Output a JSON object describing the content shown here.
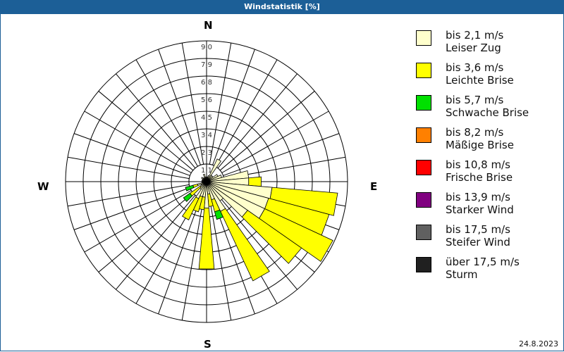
{
  "window": {
    "title": "Windstatistik [%]"
  },
  "compass": {
    "n": "N",
    "e": "E",
    "s": "S",
    "w": "W"
  },
  "footer": {
    "date": "24.8.2023"
  },
  "legend": [
    {
      "range": "bis 2,1 m/s",
      "label": "Leiser Zug",
      "color": "#ffffcc"
    },
    {
      "range": "bis 3,6 m/s",
      "label": "Leichte Brise",
      "color": "#ffff00"
    },
    {
      "range": "bis 5,7 m/s",
      "label": "Schwache Brise",
      "color": "#00e000"
    },
    {
      "range": "bis 8,2 m/s",
      "label": "Mäßige Brise",
      "color": "#ff8000"
    },
    {
      "range": "bis 10,8 m/s",
      "label": "Frische Brise",
      "color": "#ff0000"
    },
    {
      "range": "bis 13,9 m/s",
      "label": "Starker Wind",
      "color": "#800080"
    },
    {
      "range": "bis 17,5 m/s",
      "label": "Steifer Wind",
      "color": "#606060"
    },
    {
      "range": "über 17,5 m/s",
      "label": "Sturm",
      "color": "#202020"
    }
  ],
  "chart_data": {
    "type": "wind-rose",
    "title": "Windstatistik [%]",
    "unit": "%",
    "radial_ticks": [
      "1,1",
      "2,3",
      "3,4",
      "4,5",
      "5,6",
      "6,8",
      "7,9",
      "9,0"
    ],
    "rmax": 9.0,
    "sector_width_deg": 10,
    "series_names": [
      "bis 2,1 m/s",
      "bis 3,6 m/s",
      "bis 5,7 m/s"
    ],
    "sectors": [
      {
        "dir": 0,
        "values": [
          0.3,
          0.0,
          0.0
        ]
      },
      {
        "dir": 10,
        "values": [
          0.3,
          0.0,
          0.0
        ]
      },
      {
        "dir": 20,
        "values": [
          0.4,
          0.0,
          0.0
        ]
      },
      {
        "dir": 30,
        "values": [
          1.6,
          0.0,
          0.0
        ]
      },
      {
        "dir": 40,
        "values": [
          0.5,
          0.0,
          0.0
        ]
      },
      {
        "dir": 50,
        "values": [
          0.5,
          0.0,
          0.0
        ]
      },
      {
        "dir": 60,
        "values": [
          0.8,
          0.0,
          0.0
        ]
      },
      {
        "dir": 70,
        "values": [
          1.0,
          0.0,
          0.0
        ]
      },
      {
        "dir": 80,
        "values": [
          2.7,
          0.0,
          0.0
        ]
      },
      {
        "dir": 90,
        "values": [
          2.7,
          0.8,
          0.0
        ]
      },
      {
        "dir": 100,
        "values": [
          4.2,
          4.2,
          0.0
        ]
      },
      {
        "dir": 110,
        "values": [
          4.1,
          4.0,
          0.0
        ]
      },
      {
        "dir": 120,
        "values": [
          4.1,
          4.8,
          0.0
        ]
      },
      {
        "dir": 130,
        "values": [
          3.2,
          4.2,
          0.0
        ]
      },
      {
        "dir": 140,
        "values": [
          1.5,
          0.0,
          0.0
        ]
      },
      {
        "dir": 150,
        "values": [
          2.1,
          4.9,
          0.0
        ]
      },
      {
        "dir": 160,
        "values": [
          1.2,
          0.8,
          0.5
        ]
      },
      {
        "dir": 170,
        "values": [
          0.8,
          0.8,
          0.0
        ]
      },
      {
        "dir": 180,
        "values": [
          1.7,
          3.9,
          0.0
        ]
      },
      {
        "dir": 190,
        "values": [
          1.0,
          0.8,
          0.0
        ]
      },
      {
        "dir": 200,
        "values": [
          1.0,
          1.0,
          0.0
        ]
      },
      {
        "dir": 210,
        "values": [
          1.2,
          1.5,
          0.0
        ]
      },
      {
        "dir": 220,
        "values": [
          0.6,
          0.0,
          0.0
        ]
      },
      {
        "dir": 230,
        "values": [
          0.5,
          0.8,
          0.5
        ]
      },
      {
        "dir": 240,
        "values": [
          0.4,
          0.0,
          0.0
        ]
      },
      {
        "dir": 250,
        "values": [
          0.6,
          0.3,
          0.5
        ]
      },
      {
        "dir": 260,
        "values": [
          0.3,
          0.0,
          0.0
        ]
      },
      {
        "dir": 270,
        "values": [
          0.3,
          0.0,
          0.0
        ]
      },
      {
        "dir": 280,
        "values": [
          0.3,
          0.0,
          0.0
        ]
      },
      {
        "dir": 290,
        "values": [
          0.3,
          0.0,
          0.0
        ]
      },
      {
        "dir": 300,
        "values": [
          0.3,
          0.0,
          0.0
        ]
      },
      {
        "dir": 310,
        "values": [
          0.4,
          0.0,
          0.0
        ]
      },
      {
        "dir": 320,
        "values": [
          0.3,
          0.0,
          0.0
        ]
      },
      {
        "dir": 330,
        "values": [
          0.3,
          0.0,
          0.0
        ]
      },
      {
        "dir": 340,
        "values": [
          0.5,
          0.0,
          0.0
        ]
      },
      {
        "dir": 350,
        "values": [
          0.3,
          0.0,
          0.0
        ]
      }
    ]
  }
}
